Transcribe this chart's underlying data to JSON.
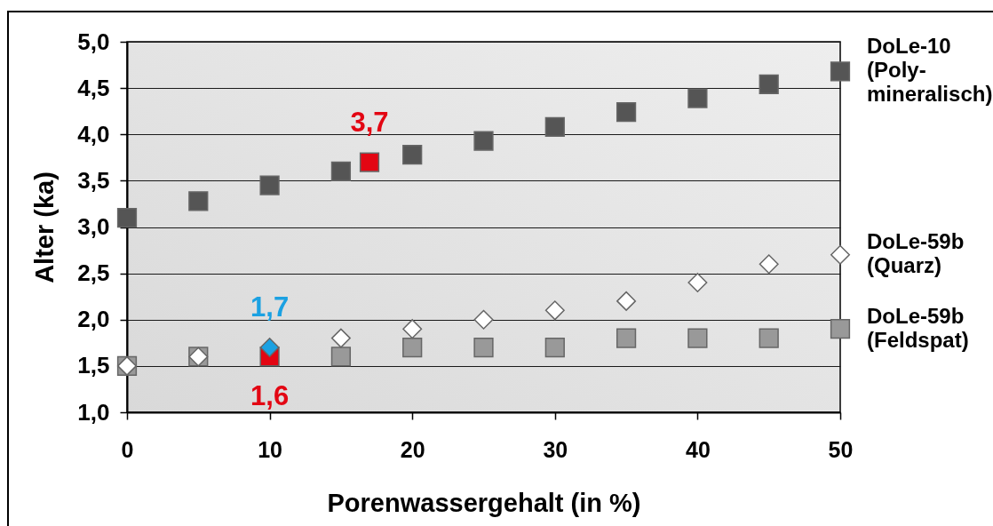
{
  "chart_data": {
    "type": "scatter",
    "xlabel": "Porenwassergehalt (in %)",
    "ylabel": "Alter (ka)",
    "xlim": [
      0,
      50
    ],
    "xticks": [
      0,
      10,
      20,
      30,
      40,
      50
    ],
    "ylim": [
      1,
      5
    ],
    "yticks": [
      {
        "value": 1,
        "label": "1,0"
      },
      {
        "value": 1.5,
        "label": "1,5"
      },
      {
        "value": 2,
        "label": "2,0"
      },
      {
        "value": 2.5,
        "label": "2,5"
      },
      {
        "value": 3,
        "label": "3,0"
      },
      {
        "value": 3.5,
        "label": "3,5"
      },
      {
        "value": 4,
        "label": "4,0"
      },
      {
        "value": 4.5,
        "label": "4,5"
      },
      {
        "value": 5,
        "label": "5,0"
      }
    ],
    "grid": "y",
    "series": [
      {
        "name": "DoLe-10\n(Poly-\nmineralisch)",
        "color": "#555555",
        "marker": "square",
        "x": [
          0,
          5,
          10,
          15,
          17,
          20,
          25,
          30,
          35,
          40,
          45,
          50
        ],
        "values": [
          3.1,
          3.28,
          3.45,
          3.6,
          3.7,
          3.78,
          3.93,
          4.08,
          4.24,
          4.39,
          4.54,
          4.68
        ],
        "colors": [
          null,
          null,
          null,
          null,
          "#e30613",
          null,
          null,
          null,
          null,
          null,
          null,
          null
        ],
        "value_labels": [
          null,
          null,
          null,
          null,
          "3,7",
          null,
          null,
          null,
          null,
          null,
          null,
          null
        ]
      },
      {
        "name": "DoLe-59b\n(Feldspat)",
        "color": "#999999",
        "marker": "square",
        "x": [
          0,
          5,
          10,
          15,
          20,
          25,
          30,
          35,
          40,
          45,
          50
        ],
        "values": [
          1.5,
          1.6,
          1.6,
          1.6,
          1.7,
          1.7,
          1.7,
          1.8,
          1.8,
          1.8,
          1.9
        ],
        "colors": [
          null,
          null,
          "#e30613",
          null,
          null,
          null,
          null,
          null,
          null,
          null,
          null
        ],
        "value_labels": [
          null,
          null,
          "1,6",
          null,
          null,
          null,
          null,
          null,
          null,
          null,
          null
        ]
      },
      {
        "name": "DoLe-59b\n(Quarz)",
        "color": "#ffffff",
        "marker": "diamond",
        "x": [
          0,
          5,
          10,
          15,
          20,
          25,
          30,
          35,
          40,
          45,
          50
        ],
        "values": [
          1.5,
          1.6,
          1.7,
          1.8,
          1.9,
          2.0,
          2.1,
          2.2,
          2.4,
          2.6,
          2.7
        ],
        "colors": [
          null,
          null,
          "#1ba1e2",
          null,
          null,
          null,
          null,
          null,
          null,
          null,
          null
        ],
        "value_labels": [
          null,
          null,
          "1,7",
          null,
          null,
          null,
          null,
          null,
          null,
          null,
          null
        ]
      }
    ]
  }
}
